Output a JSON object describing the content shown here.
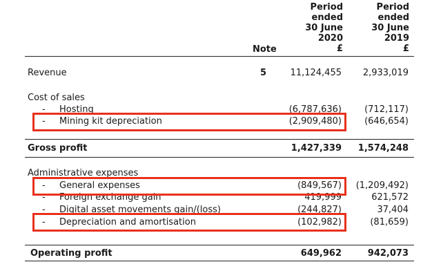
{
  "header": {
    "note": "Note",
    "col2020": [
      "Period",
      "ended",
      "30 June",
      "2020",
      "£"
    ],
    "col2019": [
      "Period",
      "ended",
      "30 June",
      "2019",
      "£"
    ]
  },
  "rows": {
    "revenue": {
      "label": "Revenue",
      "note": "5",
      "v2020": "11,124,455",
      "v2019": "2,933,019"
    },
    "cost_of_sales": {
      "label": "Cost of sales"
    },
    "hosting": {
      "dash": "-",
      "label": "Hosting",
      "v2020": "(6,787,636)",
      "v2019": "(712,117)"
    },
    "mining": {
      "dash": "-",
      "label": "Mining kit depreciation",
      "v2020": "(2,909,480)",
      "v2019": "(646,654)"
    },
    "gross_profit": {
      "label": "Gross profit",
      "v2020": "1,427,339",
      "v2019": "1,574,248"
    },
    "admin": {
      "label": "Administrative expenses"
    },
    "general": {
      "dash": "-",
      "label": "General expenses",
      "v2020": "(849,567)",
      "v2019": "(1,209,492)"
    },
    "fx": {
      "dash": "-",
      "label": "Foreign exchange gain",
      "v2020": "419,999",
      "v2019": "621,572"
    },
    "digital": {
      "dash": "-",
      "label": "Digital asset movements gain/(loss)",
      "v2020": "(244,827)",
      "v2019": "37,404"
    },
    "depreciation": {
      "dash": "-",
      "label": "Depreciation and amortisation",
      "v2020": "(102,982)",
      "v2019": "(81,659)"
    },
    "operating_profit": {
      "label": "Operating profit",
      "v2020": "649,962",
      "v2019": "942,073"
    }
  },
  "highlight_color": "#e8301c"
}
